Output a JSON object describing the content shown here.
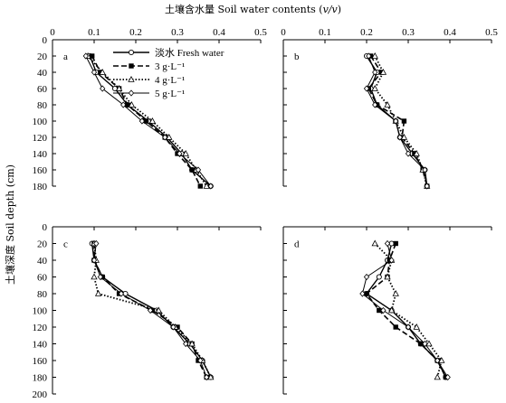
{
  "title_cn": "土壤含水量",
  "title_en": "Soil water contents",
  "title_unit": "v/v",
  "ylabel": "土壤深度 Soil depth (cm)",
  "legend": {
    "items": [
      "淡水 Fresh water",
      "3 g·L⁻¹",
      "4 g·L⁻¹",
      "5 g·L⁻¹"
    ]
  },
  "chart_data": [
    {
      "type": "line",
      "panel": "a",
      "xlim": [
        0,
        0.5
      ],
      "ylim": [
        0,
        200
      ],
      "y_inverted": true,
      "xticks": [
        "0",
        "0.1",
        "0.2",
        "0.3",
        "0.4",
        "0.5"
      ],
      "yticks": [
        "0",
        "20",
        "40",
        "60",
        "80",
        "100",
        "120",
        "140",
        "160",
        "180"
      ],
      "depth": [
        20,
        40,
        60,
        80,
        100,
        120,
        140,
        160,
        180
      ],
      "series": [
        {
          "name": "淡水 Fresh water",
          "values": [
            0.09,
            0.105,
            0.15,
            0.18,
            0.23,
            0.275,
            0.31,
            0.335,
            0.38
          ]
        },
        {
          "name": "3 g·L⁻¹",
          "values": [
            0.095,
            0.115,
            0.16,
            0.18,
            0.225,
            0.27,
            0.3,
            0.335,
            0.355
          ]
        },
        {
          "name": "4 g·L⁻¹",
          "values": [
            0.085,
            0.12,
            0.16,
            0.19,
            0.24,
            0.28,
            0.32,
            0.345,
            0.37
          ]
        },
        {
          "name": "5 g·L⁻¹",
          "values": [
            0.08,
            0.1,
            0.12,
            0.17,
            0.215,
            0.27,
            0.305,
            0.35,
            0.38
          ]
        }
      ]
    },
    {
      "type": "line",
      "panel": "b",
      "xlim": [
        0,
        0.5
      ],
      "ylim": [
        0,
        200
      ],
      "y_inverted": true,
      "xticks": [
        "0",
        "0.1",
        "0.2",
        "0.3",
        "0.4",
        "0.5"
      ],
      "yticks": [
        "0",
        "20",
        "40",
        "60",
        "80",
        "100",
        "120",
        "140",
        "160",
        "180"
      ],
      "depth": [
        20,
        40,
        60,
        80,
        100,
        120,
        140,
        160,
        180
      ],
      "series": [
        {
          "name": "淡水 Fresh water",
          "values": [
            0.2,
            0.225,
            0.21,
            0.225,
            0.27,
            0.28,
            0.31,
            0.34,
            0.345
          ]
        },
        {
          "name": "3 g·L⁻¹",
          "values": [
            0.21,
            0.235,
            0.205,
            0.225,
            0.29,
            0.285,
            0.315,
            0.335,
            0.345
          ]
        },
        {
          "name": "4 g·L⁻¹",
          "values": [
            0.22,
            0.24,
            0.22,
            0.25,
            0.27,
            0.29,
            0.32,
            0.335,
            0.345
          ]
        },
        {
          "name": "5 g·L⁻¹",
          "values": [
            0.205,
            0.22,
            0.2,
            0.22,
            0.27,
            0.28,
            0.3,
            0.34,
            0.345
          ]
        }
      ]
    },
    {
      "type": "line",
      "panel": "c",
      "xlim": [
        0,
        0.5
      ],
      "ylim": [
        0,
        200
      ],
      "y_inverted": true,
      "xticks": [
        "0",
        "0.1",
        "0.2",
        "0.3",
        "0.4",
        "0.5"
      ],
      "yticks": [
        "0",
        "20",
        "40",
        "60",
        "80",
        "100",
        "120",
        "140",
        "160",
        "180",
        "200"
      ],
      "depth": [
        20,
        40,
        60,
        80,
        100,
        120,
        140,
        160,
        180
      ],
      "series": [
        {
          "name": "淡水 Fresh water",
          "values": [
            0.095,
            0.1,
            0.12,
            0.175,
            0.25,
            0.29,
            0.33,
            0.36,
            0.38
          ]
        },
        {
          "name": "3 g·L⁻¹",
          "values": [
            0.1,
            0.1,
            0.12,
            0.16,
            0.24,
            0.3,
            0.335,
            0.35,
            0.37
          ]
        },
        {
          "name": "4 g·L⁻¹",
          "values": [
            0.1,
            0.105,
            0.1,
            0.11,
            0.255,
            0.295,
            0.335,
            0.36,
            0.38
          ]
        },
        {
          "name": "5 g·L⁻¹",
          "values": [
            0.105,
            0.1,
            0.115,
            0.165,
            0.235,
            0.29,
            0.32,
            0.355,
            0.37
          ]
        }
      ]
    },
    {
      "type": "line",
      "panel": "d",
      "xlim": [
        0,
        0.5
      ],
      "ylim": [
        0,
        200
      ],
      "y_inverted": true,
      "xticks": [
        "0",
        "0.1",
        "0.2",
        "0.3",
        "0.4",
        "0.5"
      ],
      "yticks": [
        "0",
        "20",
        "40",
        "60",
        "80",
        "100",
        "120",
        "140",
        "160",
        "180",
        "200"
      ],
      "depth": [
        20,
        40,
        60,
        80,
        100,
        120,
        140,
        160,
        180
      ],
      "series": [
        {
          "name": "淡水 Fresh water",
          "values": [
            0.26,
            0.25,
            0.23,
            0.2,
            0.26,
            0.3,
            0.33,
            0.37,
            0.39
          ]
        },
        {
          "name": "3 g·L⁻¹",
          "values": [
            0.27,
            0.255,
            0.25,
            0.2,
            0.23,
            0.27,
            0.33,
            0.37,
            0.39
          ]
        },
        {
          "name": "4 g·L⁻¹",
          "values": [
            0.22,
            0.26,
            0.25,
            0.27,
            0.26,
            0.32,
            0.35,
            0.38,
            0.37
          ]
        },
        {
          "name": "5 g·L⁻¹",
          "values": [
            0.25,
            0.26,
            0.2,
            0.19,
            0.24,
            0.3,
            0.34,
            0.37,
            0.395
          ]
        }
      ]
    }
  ]
}
